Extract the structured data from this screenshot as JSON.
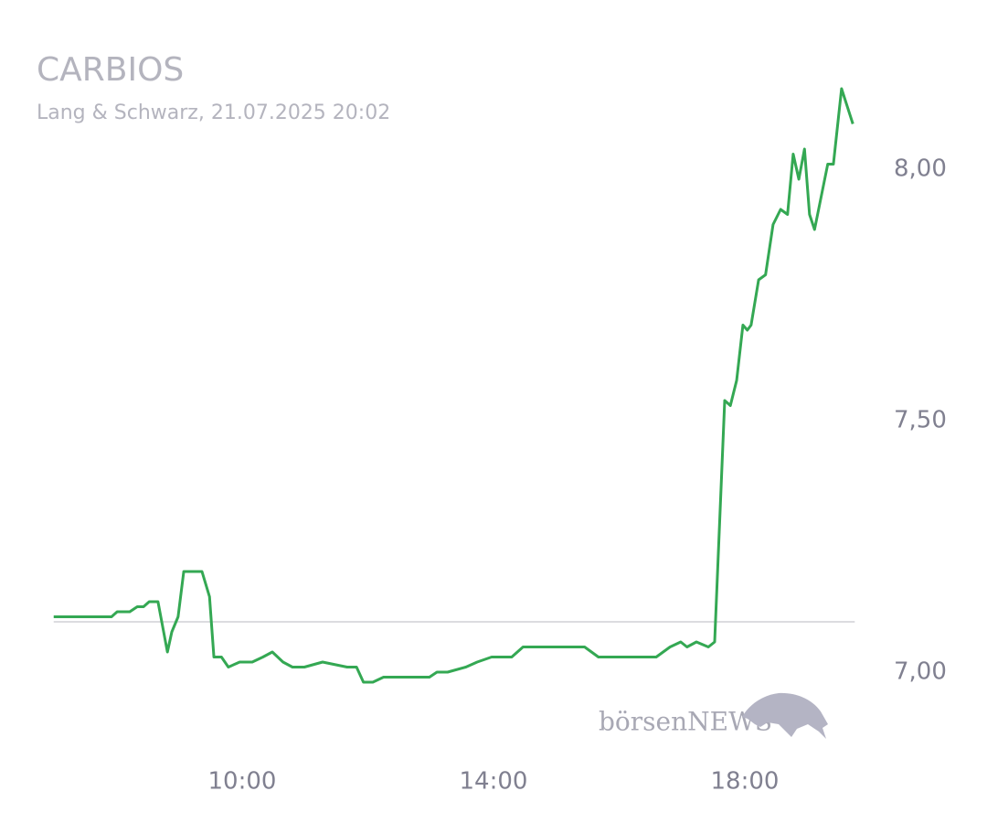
{
  "chart_data": {
    "type": "line",
    "title": "CARBIOS",
    "subtitle": "Lang & Schwarz, 21.07.2025 20:02",
    "watermark": "börsenNEWS",
    "color": "#34a853",
    "x": [
      7.0,
      7.92,
      8.01,
      8.21,
      8.33,
      8.43,
      8.52,
      8.66,
      8.81,
      8.88,
      8.98,
      9.07,
      9.24,
      9.36,
      9.48,
      9.55,
      9.67,
      9.78,
      9.96,
      10.16,
      10.33,
      10.48,
      10.65,
      10.8,
      10.99,
      11.28,
      11.67,
      11.82,
      11.93,
      12.08,
      12.25,
      12.55,
      12.84,
      12.98,
      13.1,
      13.27,
      13.56,
      13.74,
      13.97,
      14.29,
      14.47,
      14.63,
      15.45,
      15.67,
      15.86,
      16.07,
      16.59,
      16.81,
      16.98,
      17.08,
      17.23,
      17.42,
      17.52,
      17.68,
      17.77,
      17.87,
      17.97,
      18.04,
      18.1,
      18.22,
      18.33,
      18.45,
      18.57,
      18.68,
      18.77,
      18.86,
      18.95,
      19.03,
      19.11,
      19.32,
      19.41,
      19.54,
      19.72
    ],
    "values": [
      7.11,
      7.11,
      7.12,
      7.12,
      7.13,
      7.13,
      7.14,
      7.14,
      7.04,
      7.08,
      7.11,
      7.2,
      7.2,
      7.2,
      7.15,
      7.03,
      7.03,
      7.01,
      7.02,
      7.02,
      7.03,
      7.04,
      7.02,
      7.01,
      7.01,
      7.02,
      7.01,
      7.01,
      6.98,
      6.98,
      6.99,
      6.99,
      6.99,
      6.99,
      7.0,
      7.0,
      7.01,
      7.02,
      7.03,
      7.03,
      7.05,
      7.05,
      7.05,
      7.03,
      7.03,
      7.03,
      7.03,
      7.05,
      7.06,
      7.05,
      7.06,
      7.05,
      7.06,
      7.54,
      7.53,
      7.58,
      7.69,
      7.68,
      7.69,
      7.78,
      7.79,
      7.89,
      7.92,
      7.91,
      8.03,
      7.98,
      8.04,
      7.91,
      7.88,
      8.01,
      8.01,
      8.16,
      8.09
    ],
    "reference_line": 7.1,
    "xlim": [
      7,
      19.75
    ],
    "xticks": [
      {
        "value": 10,
        "label": "10:00"
      },
      {
        "value": 14,
        "label": "14:00"
      },
      {
        "value": 18,
        "label": "18:00"
      }
    ],
    "ylim": [
      6.85,
      8.2
    ],
    "yticks": [
      {
        "value": 7,
        "label": "7,00"
      },
      {
        "value": 7.5,
        "label": "7,50"
      },
      {
        "value": 8,
        "label": "8,00"
      }
    ]
  }
}
